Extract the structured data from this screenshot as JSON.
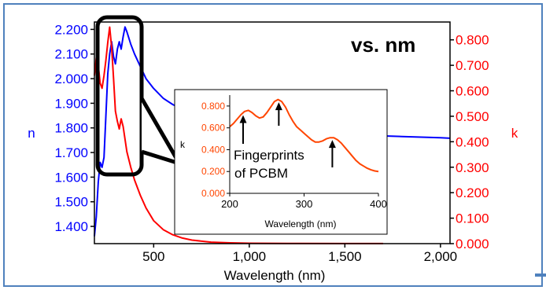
{
  "chart_data": [
    {
      "type": "line",
      "title": "vs. nm",
      "xlabel": "Wavelength (nm)",
      "ylabel_left": "n",
      "ylabel_right": "k",
      "xlim": [
        190,
        2050
      ],
      "ylim_left": [
        1.33,
        2.23
      ],
      "ylim_right": [
        0.0,
        0.87
      ],
      "x_ticks": [
        500,
        1000,
        1500,
        2000
      ],
      "x_tick_labels": [
        "500",
        "1,000",
        "1,500",
        "2,000"
      ],
      "y_left_ticks": [
        1.4,
        1.5,
        1.6,
        1.7,
        1.8,
        1.9,
        2.0,
        2.1,
        2.2
      ],
      "y_left_tick_labels": [
        "1.400",
        "1.500",
        "1.600",
        "1.700",
        "1.800",
        "1.900",
        "2.000",
        "2.100",
        "2.200"
      ],
      "y_right_ticks": [
        0.0,
        0.1,
        0.2,
        0.3,
        0.4,
        0.5,
        0.6,
        0.7,
        0.8
      ],
      "y_right_tick_labels": [
        "0.000",
        "0.100",
        "0.200",
        "0.300",
        "0.400",
        "0.500",
        "0.600",
        "0.700",
        "0.800"
      ],
      "grid": false,
      "colors": {
        "n": "#0000ff",
        "k": "#ff0000",
        "frame": "#4f81bd"
      },
      "series": [
        {
          "key": "n",
          "axis": "left",
          "x": [
            190,
            200,
            210,
            220,
            230,
            240,
            250,
            260,
            270,
            280,
            290,
            300,
            310,
            320,
            330,
            340,
            350,
            360,
            380,
            400,
            430,
            460,
            500,
            550,
            600,
            650,
            700,
            800,
            900,
            1000,
            1200,
            1400,
            1600,
            1800,
            2000,
            2050
          ],
          "y": [
            1.36,
            1.44,
            1.58,
            1.66,
            1.64,
            1.68,
            1.85,
            2.02,
            2.1,
            2.15,
            2.09,
            2.06,
            2.12,
            2.15,
            2.12,
            2.17,
            2.21,
            2.19,
            2.14,
            2.1,
            2.05,
            2.0,
            1.96,
            1.92,
            1.895,
            1.875,
            1.86,
            1.835,
            1.82,
            1.805,
            1.79,
            1.78,
            1.77,
            1.765,
            1.76,
            1.758
          ]
        },
        {
          "key": "k",
          "axis": "right",
          "x": [
            190,
            200,
            210,
            220,
            230,
            240,
            250,
            260,
            270,
            280,
            290,
            300,
            310,
            320,
            330,
            340,
            350,
            360,
            380,
            400,
            430,
            460,
            500,
            550,
            600,
            650,
            700,
            800,
            900,
            1000,
            1200,
            1500,
            1700
          ],
          "y": [
            0.66,
            0.73,
            0.7,
            0.63,
            0.61,
            0.66,
            0.72,
            0.79,
            0.85,
            0.77,
            0.65,
            0.52,
            0.48,
            0.45,
            0.49,
            0.46,
            0.41,
            0.36,
            0.3,
            0.25,
            0.19,
            0.14,
            0.09,
            0.055,
            0.035,
            0.022,
            0.014,
            0.006,
            0.003,
            0.0015,
            0.0008,
            0.0004,
            0.0003
          ]
        }
      ]
    },
    {
      "type": "line",
      "xlabel": "Wavelength (nm)",
      "ylabel": "k",
      "xlim": [
        200,
        400
      ],
      "ylim": [
        0.0,
        0.9
      ],
      "x_ticks": [
        200,
        300,
        400
      ],
      "x_tick_labels": [
        "200",
        "300",
        "400"
      ],
      "y_ticks": [
        0.0,
        0.2,
        0.4,
        0.6,
        0.8
      ],
      "y_tick_labels": [
        "0.000",
        "0.200",
        "0.400",
        "0.600",
        "0.800"
      ],
      "colors": {
        "line": "#ff4500"
      },
      "annotation": {
        "text_lines": [
          "Fingerprints",
          "of PCBM"
        ],
        "arrows_at_x": [
          218,
          266,
          338
        ]
      },
      "series": [
        {
          "key": "k",
          "x": [
            200,
            205,
            210,
            215,
            220,
            225,
            230,
            235,
            240,
            245,
            250,
            255,
            260,
            265,
            270,
            275,
            280,
            285,
            290,
            295,
            300,
            305,
            310,
            315,
            320,
            325,
            330,
            335,
            340,
            345,
            350,
            355,
            360,
            365,
            370,
            375,
            380,
            385,
            390,
            395,
            400
          ],
          "y": [
            0.61,
            0.64,
            0.68,
            0.72,
            0.75,
            0.76,
            0.74,
            0.71,
            0.69,
            0.7,
            0.74,
            0.79,
            0.84,
            0.86,
            0.84,
            0.79,
            0.72,
            0.66,
            0.61,
            0.58,
            0.55,
            0.52,
            0.49,
            0.47,
            0.47,
            0.48,
            0.5,
            0.51,
            0.51,
            0.49,
            0.46,
            0.42,
            0.38,
            0.34,
            0.3,
            0.27,
            0.25,
            0.23,
            0.215,
            0.205,
            0.2
          ]
        }
      ]
    }
  ]
}
